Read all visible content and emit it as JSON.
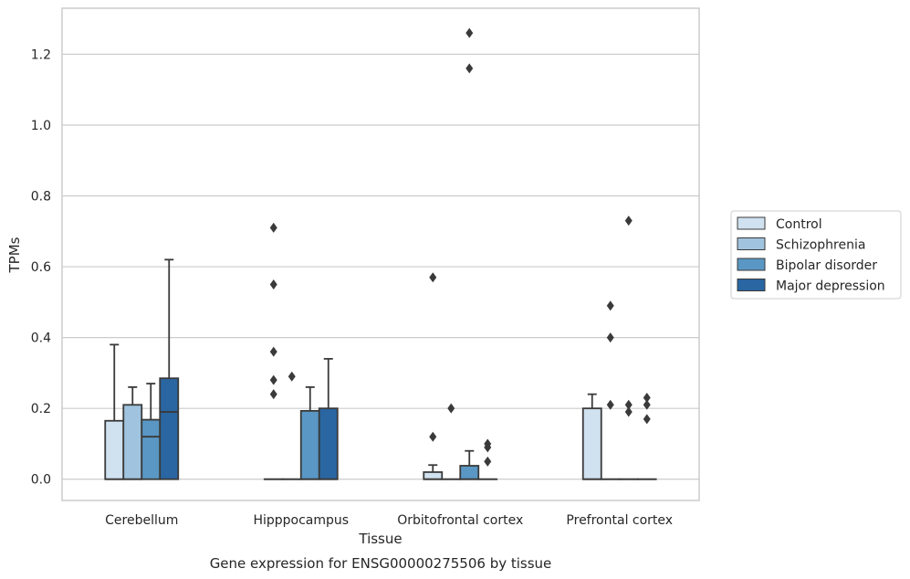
{
  "chart_data": {
    "type": "boxplot",
    "title": "",
    "caption": "Gene expression for ENSG00000275506 by tissue",
    "xlabel": "Tissue",
    "ylabel": "TPMs",
    "ylim": [
      -0.06,
      1.33
    ],
    "yticks": [
      0.0,
      0.2,
      0.4,
      0.6,
      0.8,
      1.0,
      1.2
    ],
    "ytick_labels": [
      "0.0",
      "0.2",
      "0.4",
      "0.6",
      "0.8",
      "1.0",
      "1.2"
    ],
    "categories": [
      "Cerebellum",
      "Hipppocampus",
      "Orbitofrontal cortex",
      "Prefrontal cortex"
    ],
    "legend_position": "right",
    "grid": true,
    "series": [
      {
        "name": "Control",
        "color": "#d0e1f0",
        "boxes": [
          {
            "q1": 0.0,
            "median": 0.0,
            "q3": 0.165,
            "whisker_low": 0.0,
            "whisker_high": 0.38,
            "outliers": []
          },
          {
            "q1": 0.0,
            "median": 0.0,
            "q3": 0.0,
            "whisker_low": 0.0,
            "whisker_high": 0.0,
            "outliers": [
              0.24,
              0.28,
              0.36,
              0.55,
              0.71
            ]
          },
          {
            "q1": 0.0,
            "median": 0.0,
            "q3": 0.02,
            "whisker_low": 0.0,
            "whisker_high": 0.04,
            "outliers": [
              0.12,
              0.57
            ]
          },
          {
            "q1": 0.0,
            "median": 0.0,
            "q3": 0.2,
            "whisker_low": 0.0,
            "whisker_high": 0.24,
            "outliers": []
          }
        ]
      },
      {
        "name": "Schizophrenia",
        "color": "#a0c4df",
        "boxes": [
          {
            "q1": 0.0,
            "median": 0.0,
            "q3": 0.21,
            "whisker_low": 0.0,
            "whisker_high": 0.26,
            "outliers": []
          },
          {
            "q1": 0.0,
            "median": 0.0,
            "q3": 0.0,
            "whisker_low": 0.0,
            "whisker_high": 0.0,
            "outliers": [
              0.29
            ]
          },
          {
            "q1": 0.0,
            "median": 0.0,
            "q3": 0.0,
            "whisker_low": 0.0,
            "whisker_high": 0.0,
            "outliers": [
              0.2
            ]
          },
          {
            "q1": 0.0,
            "median": 0.0,
            "q3": 0.0,
            "whisker_low": 0.0,
            "whisker_high": 0.0,
            "outliers": [
              0.21,
              0.4,
              0.49
            ]
          }
        ]
      },
      {
        "name": "Bipolar disorder",
        "color": "#5a97c4",
        "boxes": [
          {
            "q1": 0.0,
            "median": 0.12,
            "q3": 0.168,
            "whisker_low": 0.0,
            "whisker_high": 0.27,
            "outliers": []
          },
          {
            "q1": 0.0,
            "median": 0.0,
            "q3": 0.193,
            "whisker_low": 0.0,
            "whisker_high": 0.26,
            "outliers": []
          },
          {
            "q1": 0.0,
            "median": 0.0,
            "q3": 0.038,
            "whisker_low": 0.0,
            "whisker_high": 0.08,
            "outliers": [
              1.16,
              1.26
            ]
          },
          {
            "q1": 0.0,
            "median": 0.0,
            "q3": 0.0,
            "whisker_low": 0.0,
            "whisker_high": 0.0,
            "outliers": [
              0.19,
              0.21,
              0.73
            ]
          }
        ]
      },
      {
        "name": "Major depression",
        "color": "#2a66a2",
        "boxes": [
          {
            "q1": 0.0,
            "median": 0.19,
            "q3": 0.285,
            "whisker_low": 0.0,
            "whisker_high": 0.62,
            "outliers": []
          },
          {
            "q1": 0.0,
            "median": 0.0,
            "q3": 0.2,
            "whisker_low": 0.0,
            "whisker_high": 0.34,
            "outliers": []
          },
          {
            "q1": 0.0,
            "median": 0.0,
            "q3": 0.0,
            "whisker_low": 0.0,
            "whisker_high": 0.0,
            "outliers": [
              0.05,
              0.09,
              0.1
            ]
          },
          {
            "q1": 0.0,
            "median": 0.0,
            "q3": 0.0,
            "whisker_low": 0.0,
            "whisker_high": 0.0,
            "outliers": [
              0.17,
              0.21,
              0.23
            ]
          }
        ]
      }
    ]
  }
}
